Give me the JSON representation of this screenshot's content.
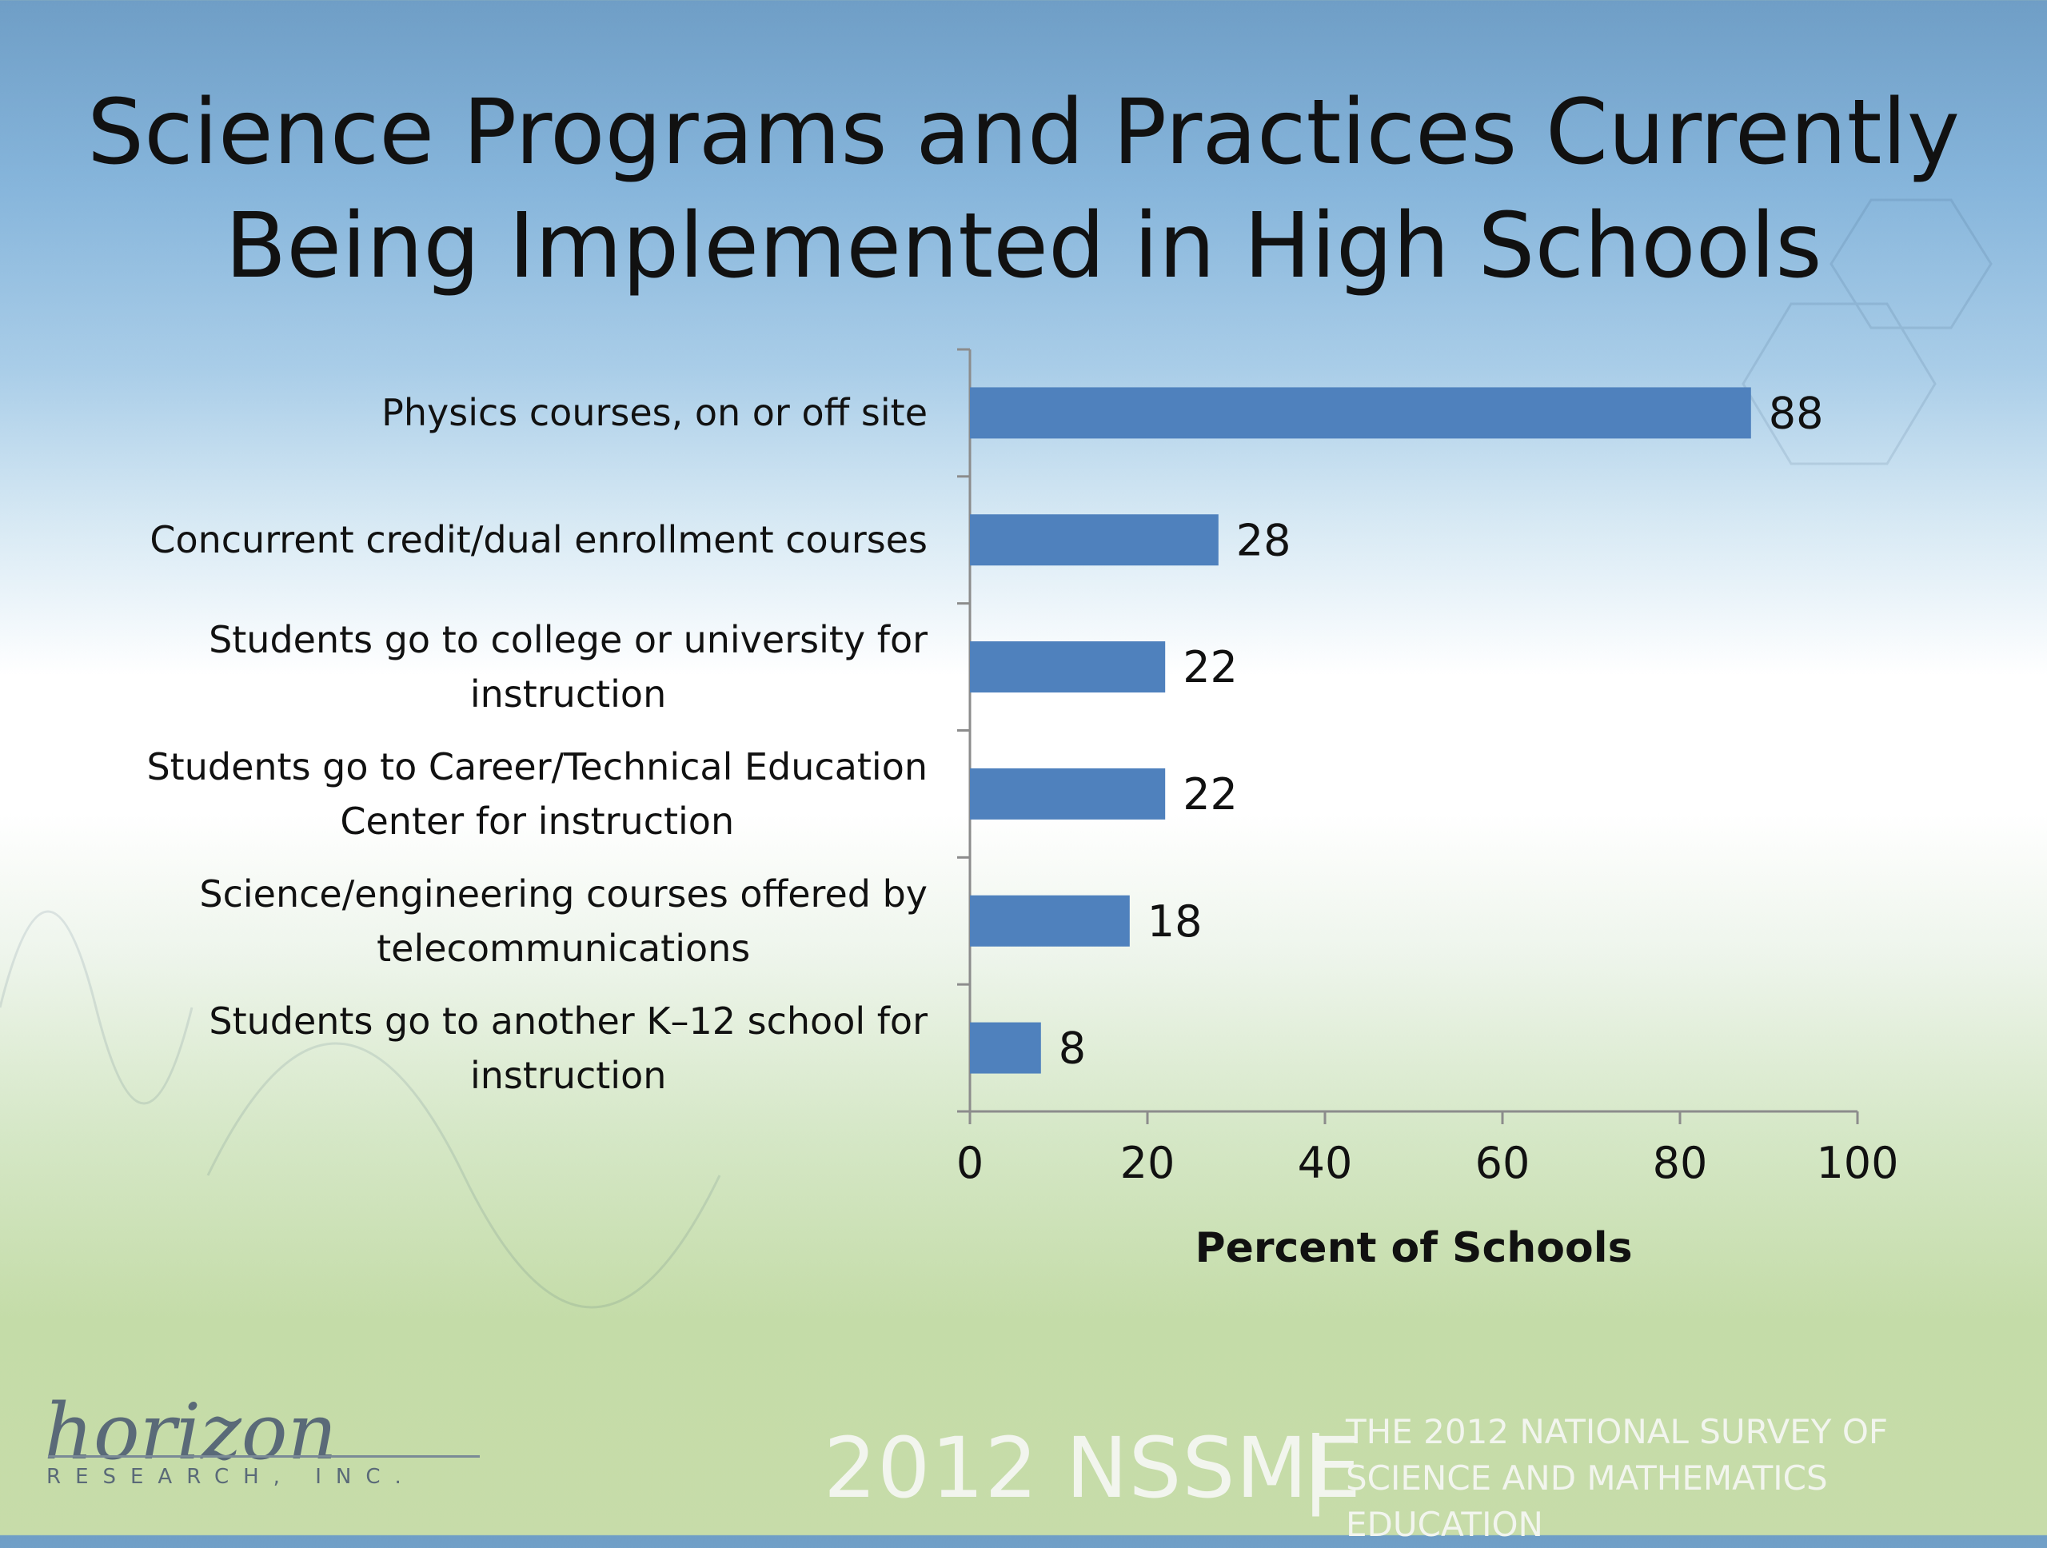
{
  "title": {
    "line1": "Science Programs and Practices Currently",
    "line2": "Being Implemented in High Schools"
  },
  "chart_data": {
    "type": "bar",
    "orientation": "horizontal",
    "categories": [
      [
        "Physics courses, on or off site"
      ],
      [
        "Concurrent credit/dual enrollment courses"
      ],
      [
        "Students go to college or university for",
        "instruction"
      ],
      [
        "Students go to Career/Technical Education",
        "Center for instruction"
      ],
      [
        "Science/engineering courses offered by",
        "telecommunications"
      ],
      [
        "Students go to another K–12 school for",
        "instruction"
      ]
    ],
    "values": [
      88,
      28,
      22,
      22,
      18,
      8
    ],
    "data_labels": [
      "88",
      "28",
      "22",
      "22",
      "18",
      "8"
    ],
    "xlabel": "Percent of Schools",
    "ylabel": "",
    "xlim": [
      0,
      100
    ],
    "xticks": [
      "0",
      "20",
      "40",
      "60",
      "80",
      "100"
    ],
    "bar_color": "#4f81bd",
    "grid": false
  },
  "footer": {
    "logo_text": "horizon",
    "logo_subtext": "RESEARCH, INC.",
    "survey_code": "2012 NSSME",
    "separator": "|",
    "survey_name_line1": "THE 2012 NATIONAL SURVEY OF",
    "survey_name_line2": "SCIENCE AND MATHEMATICS EDUCATION"
  }
}
